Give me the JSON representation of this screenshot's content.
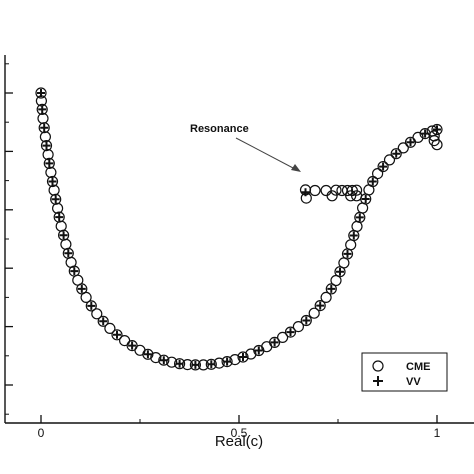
{
  "chart_data": {
    "type": "scatter",
    "xlabel": "Real(c)",
    "ylabel": "",
    "xlim": [
      -0.09,
      1.02
    ],
    "ylim": [
      -0.05,
      1.1
    ],
    "grid": false,
    "legend_position": "bottom-right",
    "x_ticks": [
      {
        "value": 0,
        "label": "0"
      },
      {
        "value": 0.5,
        "label": "0.5"
      },
      {
        "value": 1,
        "label": "1"
      }
    ],
    "y_ticks": [
      0,
      0.2,
      0.4,
      0.6,
      0.8,
      1.0
    ],
    "annotation": {
      "text": "Resonance",
      "target": [
        0.675,
        0.67
      ]
    },
    "series": [
      {
        "name": "CME",
        "marker": "open-circle",
        "points": [
          [
            0.0,
            1.0
          ],
          [
            0.001,
            0.973
          ],
          [
            0.003,
            0.944
          ],
          [
            0.005,
            0.913
          ],
          [
            0.008,
            0.881
          ],
          [
            0.011,
            0.85
          ],
          [
            0.014,
            0.82
          ],
          [
            0.018,
            0.789
          ],
          [
            0.021,
            0.759
          ],
          [
            0.025,
            0.728
          ],
          [
            0.029,
            0.697
          ],
          [
            0.033,
            0.667
          ],
          [
            0.037,
            0.636
          ],
          [
            0.042,
            0.605
          ],
          [
            0.046,
            0.575
          ],
          [
            0.051,
            0.544
          ],
          [
            0.057,
            0.513
          ],
          [
            0.063,
            0.482
          ],
          [
            0.069,
            0.451
          ],
          [
            0.076,
            0.42
          ],
          [
            0.084,
            0.39
          ],
          [
            0.093,
            0.359
          ],
          [
            0.103,
            0.329
          ],
          [
            0.114,
            0.3
          ],
          [
            0.127,
            0.271
          ],
          [
            0.141,
            0.244
          ],
          [
            0.157,
            0.218
          ],
          [
            0.174,
            0.194
          ],
          [
            0.192,
            0.172
          ],
          [
            0.211,
            0.152
          ],
          [
            0.23,
            0.135
          ],
          [
            0.25,
            0.119
          ],
          [
            0.27,
            0.105
          ],
          [
            0.29,
            0.094
          ],
          [
            0.31,
            0.085
          ],
          [
            0.33,
            0.078
          ],
          [
            0.35,
            0.073
          ],
          [
            0.37,
            0.07
          ],
          [
            0.39,
            0.069
          ],
          [
            0.41,
            0.069
          ],
          [
            0.43,
            0.071
          ],
          [
            0.45,
            0.075
          ],
          [
            0.47,
            0.08
          ],
          [
            0.49,
            0.087
          ],
          [
            0.51,
            0.096
          ],
          [
            0.53,
            0.106
          ],
          [
            0.55,
            0.118
          ],
          [
            0.57,
            0.131
          ],
          [
            0.59,
            0.146
          ],
          [
            0.61,
            0.163
          ],
          [
            0.63,
            0.181
          ],
          [
            0.65,
            0.2
          ],
          [
            0.67,
            0.221
          ],
          [
            0.69,
            0.246
          ],
          [
            0.705,
            0.272
          ],
          [
            0.72,
            0.3
          ],
          [
            0.733,
            0.329
          ],
          [
            0.745,
            0.358
          ],
          [
            0.755,
            0.388
          ],
          [
            0.765,
            0.418
          ],
          [
            0.774,
            0.449
          ],
          [
            0.782,
            0.48
          ],
          [
            0.79,
            0.512
          ],
          [
            0.798,
            0.543
          ],
          [
            0.805,
            0.574
          ],
          [
            0.812,
            0.606
          ],
          [
            0.82,
            0.637
          ],
          [
            0.828,
            0.668
          ],
          [
            0.838,
            0.697
          ],
          [
            0.85,
            0.724
          ],
          [
            0.864,
            0.748
          ],
          [
            0.88,
            0.771
          ],
          [
            0.897,
            0.792
          ],
          [
            0.915,
            0.812
          ],
          [
            0.933,
            0.831
          ],
          [
            0.952,
            0.848
          ],
          [
            0.97,
            0.861
          ],
          [
            0.988,
            0.87
          ],
          [
            1.0,
            0.875
          ],
          [
            0.668,
            0.668
          ],
          [
            0.67,
            0.64
          ],
          [
            0.692,
            0.666
          ],
          [
            0.72,
            0.666
          ],
          [
            0.745,
            0.667
          ],
          [
            0.76,
            0.666
          ],
          [
            0.774,
            0.666
          ],
          [
            0.786,
            0.666
          ],
          [
            0.797,
            0.667
          ],
          [
            0.735,
            0.648
          ],
          [
            0.782,
            0.648
          ],
          [
            0.797,
            0.648
          ],
          [
            0.993,
            0.837
          ],
          [
            1.0,
            0.823
          ],
          [
            0.993,
            0.853
          ]
        ]
      },
      {
        "name": "VV",
        "marker": "plus",
        "points": [
          [
            0.0,
            1.0
          ],
          [
            0.003,
            0.944
          ],
          [
            0.008,
            0.881
          ],
          [
            0.014,
            0.82
          ],
          [
            0.021,
            0.759
          ],
          [
            0.029,
            0.697
          ],
          [
            0.037,
            0.636
          ],
          [
            0.046,
            0.575
          ],
          [
            0.057,
            0.513
          ],
          [
            0.069,
            0.451
          ],
          [
            0.084,
            0.39
          ],
          [
            0.103,
            0.329
          ],
          [
            0.127,
            0.271
          ],
          [
            0.157,
            0.218
          ],
          [
            0.192,
            0.172
          ],
          [
            0.23,
            0.135
          ],
          [
            0.27,
            0.105
          ],
          [
            0.31,
            0.085
          ],
          [
            0.35,
            0.073
          ],
          [
            0.39,
            0.069
          ],
          [
            0.43,
            0.071
          ],
          [
            0.47,
            0.08
          ],
          [
            0.51,
            0.096
          ],
          [
            0.55,
            0.118
          ],
          [
            0.59,
            0.146
          ],
          [
            0.63,
            0.181
          ],
          [
            0.67,
            0.221
          ],
          [
            0.705,
            0.272
          ],
          [
            0.733,
            0.329
          ],
          [
            0.755,
            0.388
          ],
          [
            0.774,
            0.449
          ],
          [
            0.79,
            0.512
          ],
          [
            0.805,
            0.574
          ],
          [
            0.82,
            0.637
          ],
          [
            0.838,
            0.697
          ],
          [
            0.864,
            0.748
          ],
          [
            0.897,
            0.792
          ],
          [
            0.933,
            0.831
          ],
          [
            0.97,
            0.861
          ],
          [
            1.0,
            0.875
          ],
          [
            0.668,
            0.66
          ]
        ]
      }
    ]
  }
}
